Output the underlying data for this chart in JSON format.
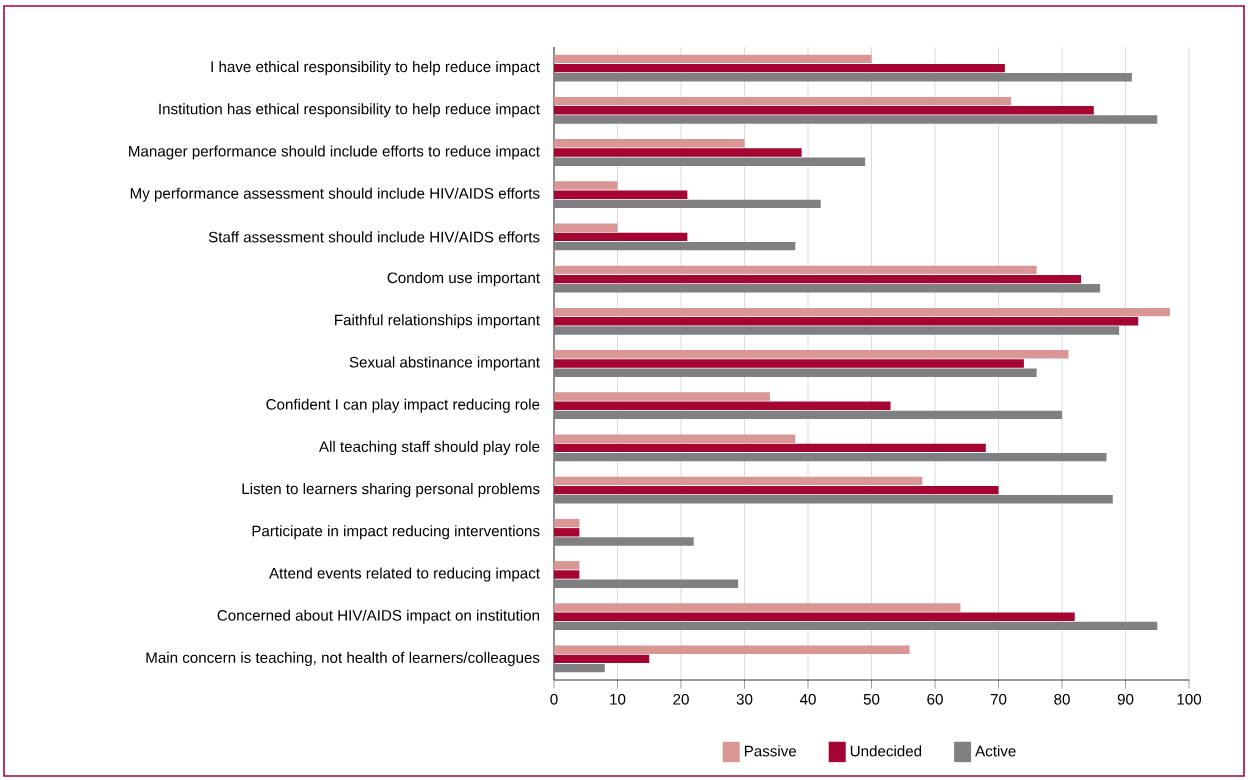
{
  "chart_data": {
    "type": "bar",
    "orientation": "horizontal",
    "categories": [
      "I have ethical responsibility to help reduce impact",
      "Institution has ethical responsibility to help reduce impact",
      "Manager performance should include efforts to reduce impact",
      "My performance assessment should include HIV/AIDS efforts",
      "Staff assessment should include HIV/AIDS efforts",
      "Condom use important",
      "Faithful relationships important",
      "Sexual abstinance important",
      "Confident I can play impact reducing role",
      "All teaching  staff should play role",
      "Listen to learners sharing personal problems",
      "Participate in impact reducing interventions",
      "Attend events related to reducing impact",
      "Concerned about HIV/AIDS impact on institution",
      "Main concern is teaching, not health of learners/colleagues"
    ],
    "series": [
      {
        "name": "Passive",
        "color": "#d99694",
        "values": [
          50,
          72,
          30,
          10,
          10,
          76,
          97,
          81,
          34,
          38,
          58,
          4,
          4,
          64,
          56
        ]
      },
      {
        "name": "Undecided",
        "color": "#a50533",
        "values": [
          71,
          85,
          39,
          21,
          21,
          83,
          92,
          74,
          53,
          68,
          70,
          4,
          4,
          82,
          15
        ]
      },
      {
        "name": "Active",
        "color": "#808083",
        "values": [
          91,
          95,
          49,
          42,
          38,
          86,
          89,
          76,
          80,
          87,
          88,
          22,
          29,
          95,
          8
        ]
      }
    ],
    "xlim": [
      0,
      100
    ],
    "xticks": [
      0,
      10,
      20,
      30,
      40,
      50,
      60,
      70,
      80,
      90,
      100
    ],
    "grid": "x",
    "legend": "bottom"
  }
}
